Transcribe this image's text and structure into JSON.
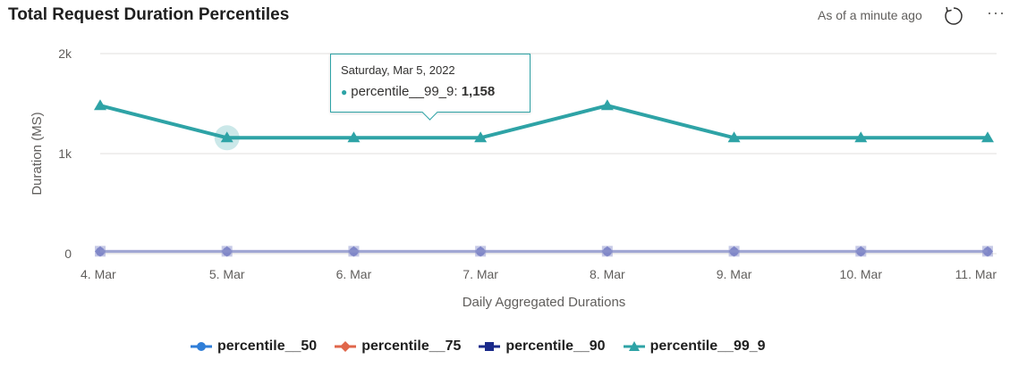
{
  "header": {
    "title": "Total Request Duration Percentiles",
    "status": "As of a minute ago"
  },
  "icons": {
    "refresh": "refresh-icon",
    "more": "more-options-icon"
  },
  "tooltip": {
    "date": "Saturday, Mar 5, 2022",
    "series": "percentile__99_9",
    "value": "1,158"
  },
  "chart_data": {
    "type": "line",
    "title": "Total Request Duration Percentiles",
    "xlabel": "Daily Aggregated Durations",
    "ylabel": "Duration (MS)",
    "categories": [
      "4. Mar",
      "5. Mar",
      "6. Mar",
      "7. Mar",
      "8. Mar",
      "9. Mar",
      "10. Mar",
      "11. Mar"
    ],
    "ylim": [
      0,
      2000
    ],
    "yticks": [
      0,
      1000,
      2000
    ],
    "ytick_labels": [
      "0",
      "1k",
      "2k"
    ],
    "legend_position": "bottom",
    "series": [
      {
        "name": "percentile__50",
        "color": "#2f7ed8",
        "marker": "circle",
        "values": [
          20,
          20,
          20,
          20,
          20,
          20,
          20,
          20
        ]
      },
      {
        "name": "percentile__75",
        "color": "#e0664a",
        "marker": "diamond",
        "values": [
          22,
          22,
          22,
          22,
          22,
          22,
          22,
          22
        ]
      },
      {
        "name": "percentile__90",
        "color": "#1a2a8a",
        "marker": "square",
        "values": [
          24,
          24,
          24,
          24,
          24,
          24,
          24,
          24
        ]
      },
      {
        "name": "percentile__99_9",
        "color": "#2ea3a6",
        "marker": "triangle",
        "values": [
          1480,
          1158,
          1158,
          1158,
          1480,
          1158,
          1158,
          1158
        ]
      }
    ],
    "highlight": {
      "series": "percentile__99_9",
      "index": 1
    }
  }
}
